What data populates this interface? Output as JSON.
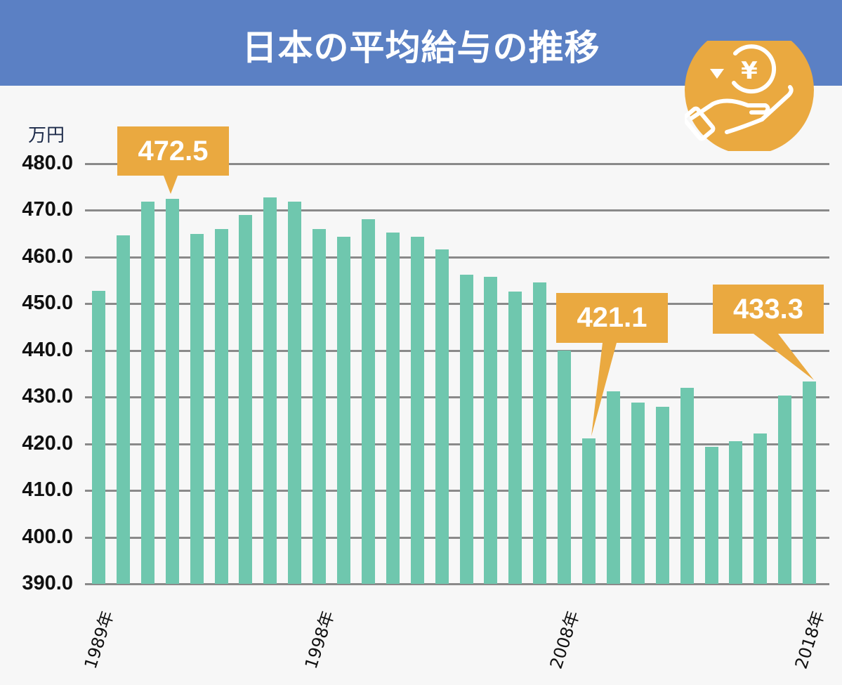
{
  "header": {
    "title": "日本の平均給与の推移",
    "icon": "yen-hand-icon",
    "background": "#5b80c4"
  },
  "colors": {
    "bar": "#6fc7ae",
    "callout": "#eaa940",
    "grid": "#8a8a8a",
    "background": "#f7f7f7"
  },
  "axis": {
    "unit": "万円",
    "yticks": [
      "480.0",
      "470.0",
      "460.0",
      "450.0",
      "440.0",
      "430.0",
      "420.0",
      "410.0",
      "400.0",
      "390.0"
    ],
    "xlabels": [
      "1989年",
      "1998年",
      "2008年",
      "2018年"
    ]
  },
  "callouts": [
    {
      "label": "472.5",
      "year": 1992
    },
    {
      "label": "421.1",
      "year": 2009
    },
    {
      "label": "433.3",
      "year": 2018
    }
  ],
  "chart_data": {
    "type": "bar",
    "title": "日本の平均給与の推移",
    "xlabel": "",
    "ylabel": "万円",
    "ylim": [
      390,
      480
    ],
    "grid": true,
    "categories": [
      "1989",
      "1990",
      "1991",
      "1992",
      "1993",
      "1994",
      "1995",
      "1996",
      "1997",
      "1998",
      "1999",
      "2000",
      "2001",
      "2002",
      "2003",
      "2004",
      "2005",
      "2006",
      "2007",
      "2008",
      "2009",
      "2010",
      "2011",
      "2012",
      "2013",
      "2014",
      "2015",
      "2016",
      "2017",
      "2018"
    ],
    "values": [
      452.7,
      464.6,
      471.8,
      472.5,
      465.0,
      466.0,
      469.0,
      472.8,
      471.8,
      466.0,
      464.3,
      468.1,
      465.3,
      464.4,
      461.6,
      456.2,
      455.8,
      452.6,
      454.5,
      440.0,
      421.1,
      431.3,
      428.9,
      427.9,
      432.0,
      419.3,
      420.6,
      422.2,
      430.3,
      433.3
    ],
    "annotations": [
      {
        "x": "1992",
        "text": "472.5"
      },
      {
        "x": "2009",
        "text": "421.1"
      },
      {
        "x": "2018",
        "text": "433.3"
      }
    ],
    "x_tick_labels_shown": [
      "1989年",
      "1998年",
      "2008年",
      "2018年"
    ]
  }
}
